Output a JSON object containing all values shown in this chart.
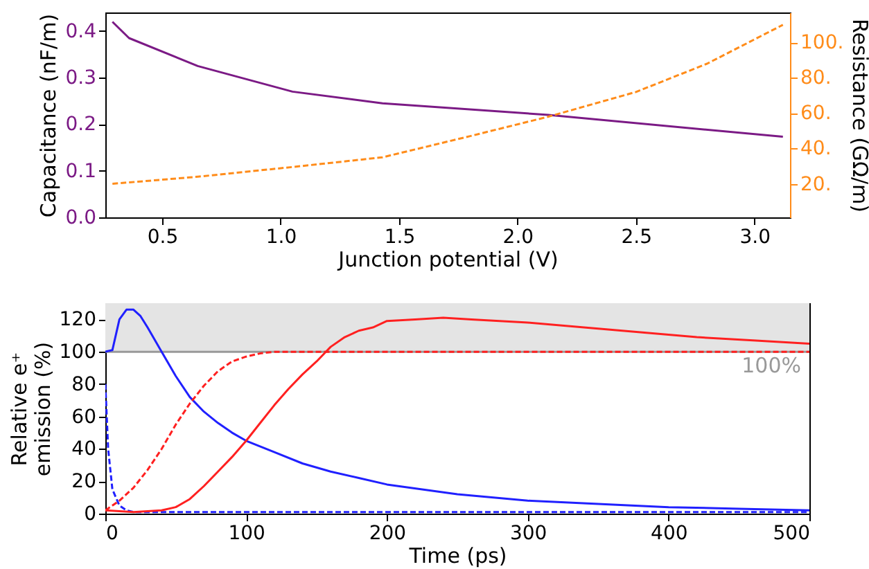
{
  "chart_data": [
    {
      "type": "line",
      "xlabel": "Junction potential (V)",
      "ylabel": "Capacitance (nF/m)",
      "y2label": "Resistance (GΩ/m)",
      "xlim": [
        0.26,
        3.15
      ],
      "xticks": [
        0.5,
        {
          "value": 1,
          "label": "1.0"
        },
        1.5,
        {
          "value": 2,
          "label": "2.0"
        },
        2.5,
        {
          "value": 3,
          "label": "3.0"
        }
      ],
      "ylim": [
        0,
        0.44
      ],
      "yticks": [
        {
          "value": 0,
          "label": "0.0"
        },
        0.1,
        0.2,
        0.3,
        0.4
      ],
      "y2lim": [
        1,
        117
      ],
      "y2ticks": [
        {
          "value": 20,
          "label": "20."
        },
        {
          "value": 40,
          "label": "40."
        },
        {
          "value": 60,
          "label": "60."
        },
        {
          "value": 80,
          "label": "80."
        },
        {
          "value": 100,
          "label": "100."
        }
      ],
      "grid": false,
      "series": [
        {
          "color": "#7b1a85",
          "line_style": "solid",
          "x": [
            0.29,
            0.36,
            0.65,
            1.05,
            1.43,
            2.13,
            3.12
          ],
          "values": [
            0.42,
            0.385,
            0.325,
            0.27,
            0.245,
            0.22,
            0.173
          ]
        },
        {
          "color": "#ff8c1a",
          "line_style": "dashed",
          "axis": "y2",
          "x": [
            0.29,
            0.65,
            1.05,
            1.43,
            1.8,
            2.13,
            2.5,
            2.8,
            3.12
          ],
          "values": [
            20,
            24,
            29.5,
            35,
            47,
            58,
            72,
            88,
            110
          ]
        }
      ]
    },
    {
      "type": "line",
      "xlabel": "Time (ps)",
      "ylabel": "Relative e⁺ emission (%)",
      "xlim": [
        0,
        500
      ],
      "xticks": [
        0,
        100,
        200,
        300,
        400,
        500
      ],
      "ylim": [
        0,
        130
      ],
      "yticks": [
        0,
        20,
        40,
        60,
        80,
        100,
        120
      ],
      "grid": false,
      "bands": [
        {
          "axis": "y",
          "from": 100,
          "to": 130,
          "color": "#e4e4e4"
        }
      ],
      "ref_lines": [
        {
          "axis": "y",
          "value": 100,
          "label": "100%",
          "color": "#999999"
        }
      ],
      "series": [
        {
          "color": "#2020ff",
          "line_style": "solid",
          "x": [
            0,
            5,
            10,
            15,
            20,
            25,
            30,
            40,
            50,
            60,
            70,
            80,
            90,
            100,
            120,
            140,
            160,
            180,
            200,
            250,
            300,
            350,
            400,
            450,
            500
          ],
          "values": [
            100,
            101,
            120,
            126,
            126,
            122,
            115,
            100,
            85,
            72,
            63,
            56,
            50,
            45,
            38,
            31,
            26,
            22,
            18,
            12,
            8,
            6,
            4,
            3,
            2
          ]
        },
        {
          "color": "#2020ff",
          "line_style": "dashed",
          "x": [
            0,
            2,
            5,
            10,
            15,
            20,
            50,
            500
          ],
          "values": [
            80,
            40,
            15,
            5,
            2,
            1,
            1,
            1
          ]
        },
        {
          "color": "#ff2020",
          "line_style": "dashed",
          "x": [
            0,
            10,
            20,
            30,
            40,
            50,
            60,
            70,
            80,
            90,
            100,
            110,
            120,
            500
          ],
          "values": [
            2,
            8,
            16,
            27,
            40,
            55,
            68,
            79,
            88,
            94,
            97,
            99,
            100,
            100
          ]
        },
        {
          "color": "#ff2020",
          "line_style": "solid",
          "x": [
            0,
            20,
            40,
            50,
            60,
            70,
            80,
            90,
            100,
            110,
            120,
            130,
            140,
            150,
            160,
            170,
            180,
            190,
            200,
            220,
            240,
            260,
            280,
            300,
            340,
            380,
            420,
            460,
            500
          ],
          "values": [
            2,
            1,
            2,
            4,
            9,
            17,
            26,
            35,
            45,
            56,
            67,
            77,
            86,
            94,
            103,
            109,
            113,
            115,
            119,
            120,
            121,
            120,
            119,
            118,
            115,
            112,
            109,
            107,
            105
          ]
        }
      ]
    }
  ]
}
